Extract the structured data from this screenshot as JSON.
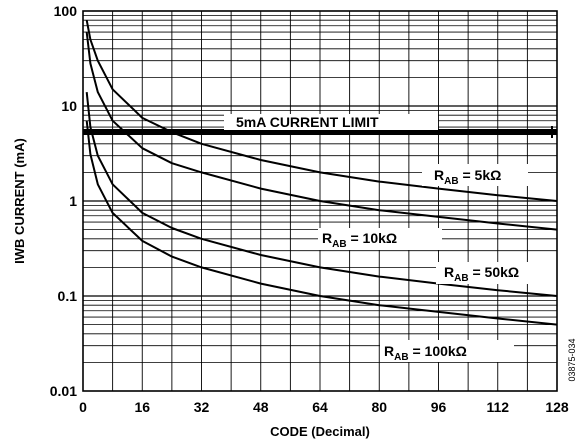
{
  "chart_data": {
    "type": "line",
    "xlabel": "CODE (Decimal)",
    "ylabel": "IWB CURRENT (mA)",
    "xlim": [
      0,
      128
    ],
    "ylim": [
      0.01,
      100
    ],
    "y_scale": "log",
    "grid": true,
    "x_ticks": [
      "0",
      "16",
      "32",
      "48",
      "64",
      "80",
      "96",
      "112",
      "128"
    ],
    "y_ticks": [
      "0.01",
      "0.1",
      "1",
      "10",
      "100"
    ],
    "limit_line": {
      "value": 5,
      "label": "5mA CURRENT LIMIT"
    },
    "series": [
      {
        "name": "RAB = 5kΩ",
        "label_main": "R",
        "label_sub": "AB",
        "label_rest": " = 5kΩ",
        "x": [
          1,
          2,
          4,
          8,
          16,
          24,
          32,
          48,
          64,
          80,
          96,
          112,
          128
        ],
        "y": [
          80,
          50,
          30,
          15,
          7.5,
          5.3,
          4,
          2.7,
          2,
          1.6,
          1.35,
          1.15,
          1.0
        ]
      },
      {
        "name": "RAB = 10kΩ",
        "label_main": "R",
        "label_sub": "AB",
        "label_rest": " = 10kΩ",
        "x": [
          1,
          2,
          4,
          8,
          16,
          24,
          32,
          48,
          64,
          80,
          96,
          112,
          128
        ],
        "y": [
          60,
          28,
          14,
          7,
          3.6,
          2.5,
          2,
          1.35,
          1.0,
          0.8,
          0.68,
          0.58,
          0.5
        ]
      },
      {
        "name": "RAB = 50kΩ",
        "label_main": "R",
        "label_sub": "AB",
        "label_rest": " = 50kΩ",
        "x": [
          1,
          2,
          4,
          8,
          16,
          24,
          32,
          48,
          64,
          80,
          96,
          112,
          128
        ],
        "y": [
          14,
          6,
          3,
          1.5,
          0.75,
          0.52,
          0.4,
          0.27,
          0.2,
          0.16,
          0.135,
          0.115,
          0.1
        ]
      },
      {
        "name": "RAB = 100kΩ",
        "label_main": "R",
        "label_sub": "AB",
        "label_rest": " = 100kΩ",
        "x": [
          1,
          2,
          4,
          8,
          16,
          24,
          32,
          48,
          64,
          80,
          96,
          112,
          128
        ],
        "y": [
          7,
          3.1,
          1.5,
          0.75,
          0.38,
          0.26,
          0.2,
          0.135,
          0.1,
          0.08,
          0.068,
          0.058,
          0.05
        ]
      }
    ]
  },
  "figure_code": "03875-034"
}
